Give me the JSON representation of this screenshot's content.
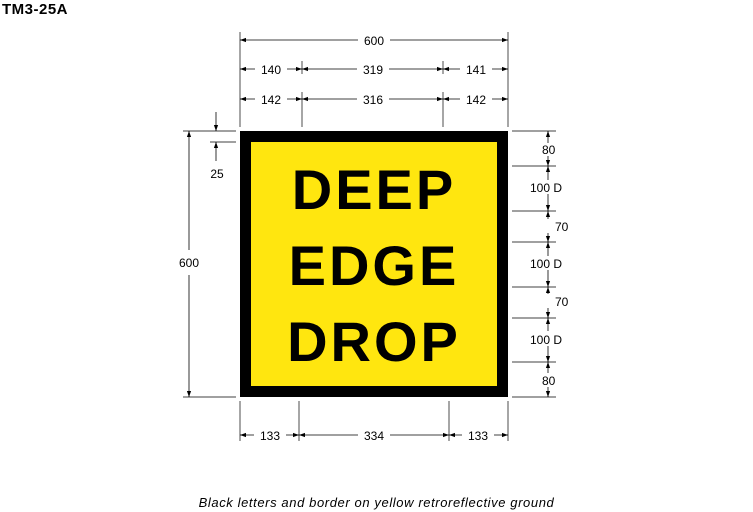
{
  "sign_code": "TM3-25A",
  "sign": {
    "lines": [
      "DEEP",
      "EDGE",
      "DROP"
    ],
    "ground_color": "#FFE60F",
    "legend_color": "#000000"
  },
  "dimensions": {
    "overall_width": "600",
    "top_row_1": [
      "140",
      "319",
      "141"
    ],
    "top_row_2": [
      "142",
      "316",
      "142"
    ],
    "bottom_row": [
      "133",
      "334",
      "133"
    ],
    "overall_height": "600",
    "border": "25",
    "right_column": [
      "80",
      "100 D",
      "70",
      "100 D",
      "70",
      "100 D",
      "80"
    ]
  },
  "caption": "Black letters and border on yellow retroreflective ground"
}
